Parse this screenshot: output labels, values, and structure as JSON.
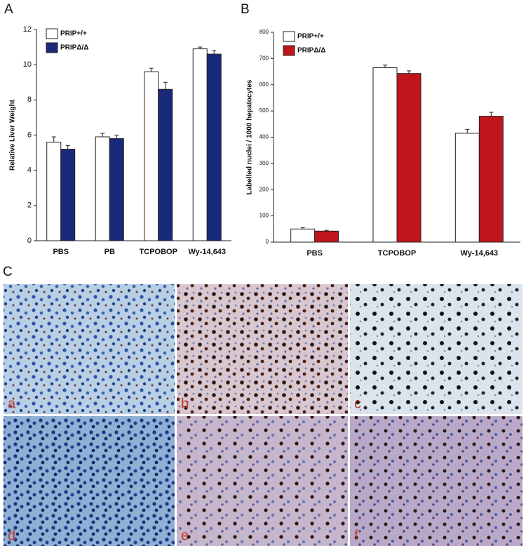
{
  "chart_data": [
    {
      "type": "bar",
      "panel_label": "A",
      "ylabel": "Relative Liver Weight",
      "categories": [
        "PBS",
        "PB",
        "TCPOBOP",
        "Wy-14,643"
      ],
      "series": [
        {
          "name": "PRIP+/+",
          "color": "#ffffff",
          "values": [
            5.6,
            5.9,
            9.6,
            10.9
          ],
          "errors": [
            0.3,
            0.2,
            0.2,
            0.1
          ]
        },
        {
          "name": "PRIPΔ/Δ",
          "color": "#1a2a7a",
          "values": [
            5.2,
            5.8,
            8.6,
            10.6
          ],
          "errors": [
            0.2,
            0.2,
            0.4,
            0.2
          ]
        }
      ],
      "ylim": [
        0,
        12
      ],
      "yticks": [
        0,
        2,
        4,
        6,
        8,
        10,
        12
      ],
      "legend": "upper left"
    },
    {
      "type": "bar",
      "panel_label": "B",
      "ylabel": "Labelled nuclei / 1000 hepatocytes",
      "categories": [
        "PBS",
        "TCPOBOP",
        "Wy-14,643"
      ],
      "series": [
        {
          "name": "PRIP+/+",
          "color": "#ffffff",
          "values": [
            50,
            665,
            415
          ],
          "errors": [
            5,
            10,
            15
          ]
        },
        {
          "name": "PRIPΔ/Δ",
          "color": "#c0161b",
          "values": [
            42,
            643,
            480
          ],
          "errors": [
            3,
            10,
            15
          ]
        }
      ],
      "ylim": [
        0,
        800
      ],
      "yticks": [
        0,
        100,
        200,
        300,
        400,
        500,
        600,
        700,
        800
      ],
      "legend": "upper left"
    }
  ],
  "micrographs": {
    "panel_label": "C",
    "tiles": [
      "a",
      "b",
      "c",
      "d",
      "e",
      "f"
    ]
  }
}
